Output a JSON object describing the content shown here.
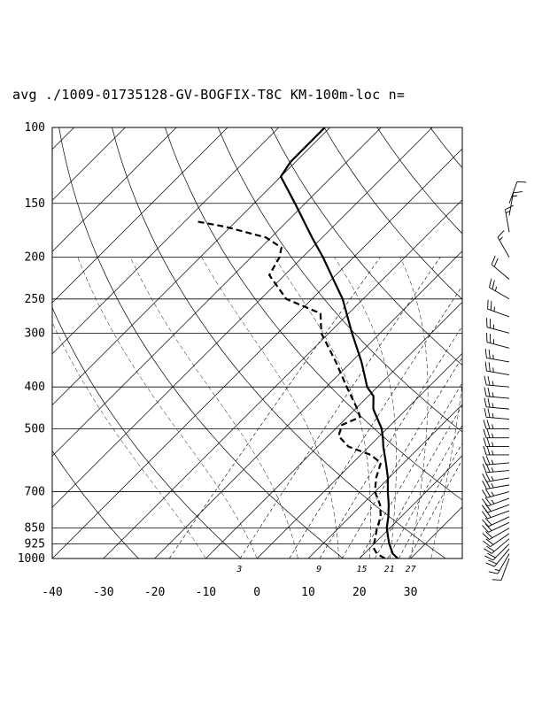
{
  "chart_data": {
    "type": "skew-t",
    "title": "avg ./1009-01735128-GV-BOGFIX-T8C KM-100m-loc n=",
    "xlabel": "",
    "ylabel": "",
    "pressure_levels": [
      100,
      150,
      200,
      250,
      300,
      400,
      500,
      700,
      850,
      925,
      1000
    ],
    "pressure_labels": [
      "100",
      "150",
      "200",
      "250",
      "300",
      "400",
      "500",
      "700",
      "850",
      "925",
      "1000"
    ],
    "temperature_ticks": [
      -40,
      -30,
      -20,
      -10,
      0,
      10,
      20,
      30
    ],
    "temperature_labels": [
      "-40",
      "-30",
      "-20",
      "-10",
      "0",
      "10",
      "20",
      "30"
    ],
    "mixing_ratio_labels": [
      "3",
      "9",
      "15",
      "21",
      "27"
    ],
    "ylim": [
      1000,
      100
    ],
    "xlim_at_1000hPa": [
      -40,
      40
    ],
    "series": [
      {
        "style": "solid",
        "points": [
          {
            "p": 1000,
            "t": 27.5
          },
          {
            "p": 975,
            "t": 25.6
          },
          {
            "p": 925,
            "t": 23.0
          },
          {
            "p": 900,
            "t": 21.8
          },
          {
            "p": 850,
            "t": 19.4
          },
          {
            "p": 800,
            "t": 17.5
          },
          {
            "p": 750,
            "t": 15.2
          },
          {
            "p": 700,
            "t": 12.5
          },
          {
            "p": 650,
            "t": 9.8
          },
          {
            "p": 600,
            "t": 6.5
          },
          {
            "p": 550,
            "t": 2.8
          },
          {
            "p": 525,
            "t": 1.0
          },
          {
            "p": 500,
            "t": -1.0
          },
          {
            "p": 450,
            "t": -6.5
          },
          {
            "p": 420,
            "t": -9.0
          },
          {
            "p": 400,
            "t": -12.0
          },
          {
            "p": 370,
            "t": -15.5
          },
          {
            "p": 350,
            "t": -18.0
          },
          {
            "p": 300,
            "t": -25.5
          },
          {
            "p": 250,
            "t": -34.0
          },
          {
            "p": 230,
            "t": -38.5
          },
          {
            "p": 200,
            "t": -46.0
          },
          {
            "p": 180,
            "t": -52.0
          },
          {
            "p": 150,
            "t": -62.0
          },
          {
            "p": 130,
            "t": -70.0
          },
          {
            "p": 120,
            "t": -71.0
          },
          {
            "p": 100,
            "t": -71.0
          }
        ]
      },
      {
        "style": "dashed",
        "points": [
          {
            "p": 1000,
            "t": 25.0
          },
          {
            "p": 975,
            "t": 22.5
          },
          {
            "p": 950,
            "t": 21.0
          },
          {
            "p": 925,
            "t": 20.0
          },
          {
            "p": 900,
            "t": 19.2
          },
          {
            "p": 850,
            "t": 17.5
          },
          {
            "p": 800,
            "t": 16.0
          },
          {
            "p": 750,
            "t": 13.5
          },
          {
            "p": 700,
            "t": 10.0
          },
          {
            "p": 650,
            "t": 7.5
          },
          {
            "p": 600,
            "t": 5.5
          },
          {
            "p": 575,
            "t": 2.0
          },
          {
            "p": 550,
            "t": -4.0
          },
          {
            "p": 520,
            "t": -8.0
          },
          {
            "p": 490,
            "t": -9.5
          },
          {
            "p": 470,
            "t": -7.5
          },
          {
            "p": 455,
            "t": -9.0
          },
          {
            "p": 400,
            "t": -16.0
          },
          {
            "p": 350,
            "t": -23.0
          },
          {
            "p": 300,
            "t": -31.5
          },
          {
            "p": 270,
            "t": -35.5
          },
          {
            "p": 250,
            "t": -45.0
          },
          {
            "p": 220,
            "t": -53.0
          },
          {
            "p": 200,
            "t": -54.5
          },
          {
            "p": 190,
            "t": -56.0
          },
          {
            "p": 180,
            "t": -61.0
          },
          {
            "p": 170,
            "t": -71.0
          },
          {
            "p": 165,
            "t": -78.0
          }
        ]
      }
    ],
    "wind_barbs": [
      {
        "p": 1000,
        "dir": 200,
        "spd": 10
      },
      {
        "p": 975,
        "dir": 210,
        "spd": 15
      },
      {
        "p": 950,
        "dir": 220,
        "spd": 20
      },
      {
        "p": 925,
        "dir": 225,
        "spd": 20
      },
      {
        "p": 900,
        "dir": 230,
        "spd": 20
      },
      {
        "p": 875,
        "dir": 235,
        "spd": 20
      },
      {
        "p": 850,
        "dir": 240,
        "spd": 20
      },
      {
        "p": 825,
        "dir": 245,
        "spd": 20
      },
      {
        "p": 800,
        "dir": 245,
        "spd": 20
      },
      {
        "p": 775,
        "dir": 250,
        "spd": 20
      },
      {
        "p": 750,
        "dir": 250,
        "spd": 20
      },
      {
        "p": 725,
        "dir": 250,
        "spd": 25
      },
      {
        "p": 700,
        "dir": 255,
        "spd": 25
      },
      {
        "p": 675,
        "dir": 260,
        "spd": 25
      },
      {
        "p": 650,
        "dir": 260,
        "spd": 25
      },
      {
        "p": 625,
        "dir": 265,
        "spd": 25
      },
      {
        "p": 600,
        "dir": 265,
        "spd": 25
      },
      {
        "p": 575,
        "dir": 270,
        "spd": 25
      },
      {
        "p": 550,
        "dir": 270,
        "spd": 25
      },
      {
        "p": 525,
        "dir": 270,
        "spd": 25
      },
      {
        "p": 500,
        "dir": 270,
        "spd": 25
      },
      {
        "p": 475,
        "dir": 275,
        "spd": 25
      },
      {
        "p": 450,
        "dir": 275,
        "spd": 25
      },
      {
        "p": 425,
        "dir": 275,
        "spd": 25
      },
      {
        "p": 400,
        "dir": 275,
        "spd": 25
      },
      {
        "p": 375,
        "dir": 280,
        "spd": 25
      },
      {
        "p": 350,
        "dir": 280,
        "spd": 25
      },
      {
        "p": 325,
        "dir": 285,
        "spd": 25
      },
      {
        "p": 300,
        "dir": 285,
        "spd": 25
      },
      {
        "p": 275,
        "dir": 290,
        "spd": 25
      },
      {
        "p": 250,
        "dir": 300,
        "spd": 25
      },
      {
        "p": 225,
        "dir": 310,
        "spd": 20
      },
      {
        "p": 200,
        "dir": 330,
        "spd": 15
      },
      {
        "p": 175,
        "dir": 350,
        "spd": 15
      },
      {
        "p": 160,
        "dir": 10,
        "spd": 15
      },
      {
        "p": 150,
        "dir": 20,
        "spd": 10
      }
    ]
  }
}
